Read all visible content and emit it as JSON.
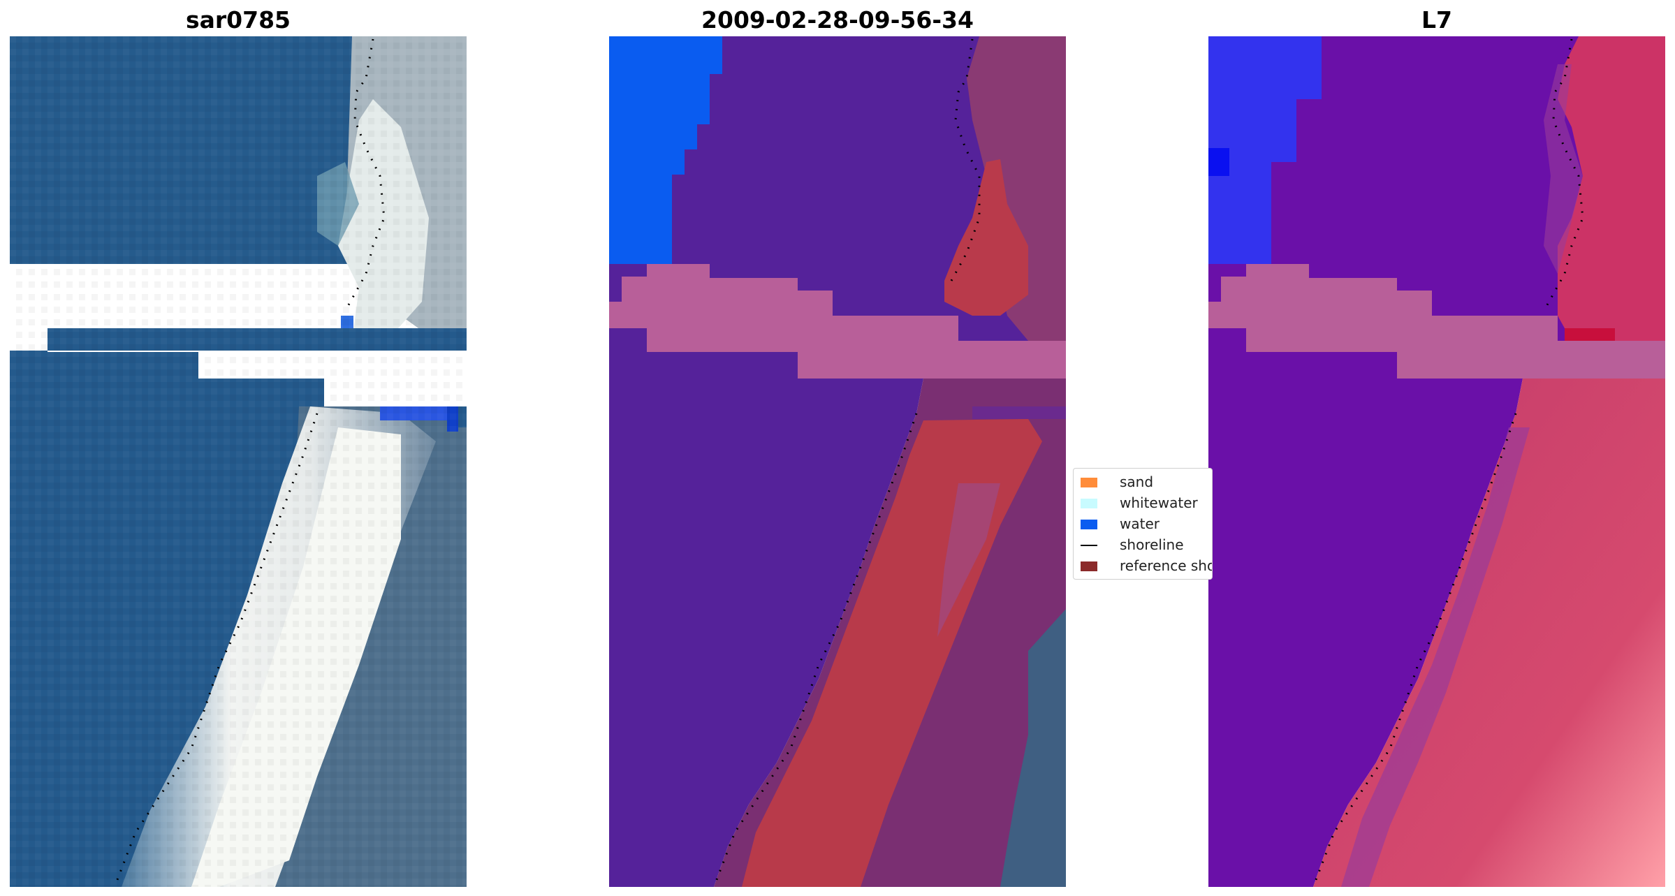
{
  "panels": [
    {
      "title": "sar0785"
    },
    {
      "title": "2009-02-28-09-56-34"
    },
    {
      "title": "L7"
    }
  ],
  "legend": {
    "items": [
      {
        "label": "sand",
        "color": "#ff8c3a",
        "kind": "patch"
      },
      {
        "label": "whitewater",
        "color": "#c8fbff",
        "kind": "patch"
      },
      {
        "label": "water",
        "color": "#0a5cf0",
        "kind": "patch"
      },
      {
        "label": "shoreline",
        "color": "#000000",
        "kind": "line"
      },
      {
        "label": "reference shoreline",
        "color": "#8b2a2a",
        "kind": "patch"
      }
    ]
  },
  "colors": {
    "rgb_water": "#245a8c",
    "rgb_white": "#eef0ee",
    "rgb_land": "#466a8a",
    "class_water": "#55229a",
    "class_land": "#7a2f72",
    "class_sand": "#b83a4a",
    "class_cloud": "#b85f99",
    "class_blue": "#0a5cf0",
    "mndwi_water": "#6a10a8",
    "mndwi_land": "#cc3366",
    "mndwi_blue": "#3333ee"
  }
}
